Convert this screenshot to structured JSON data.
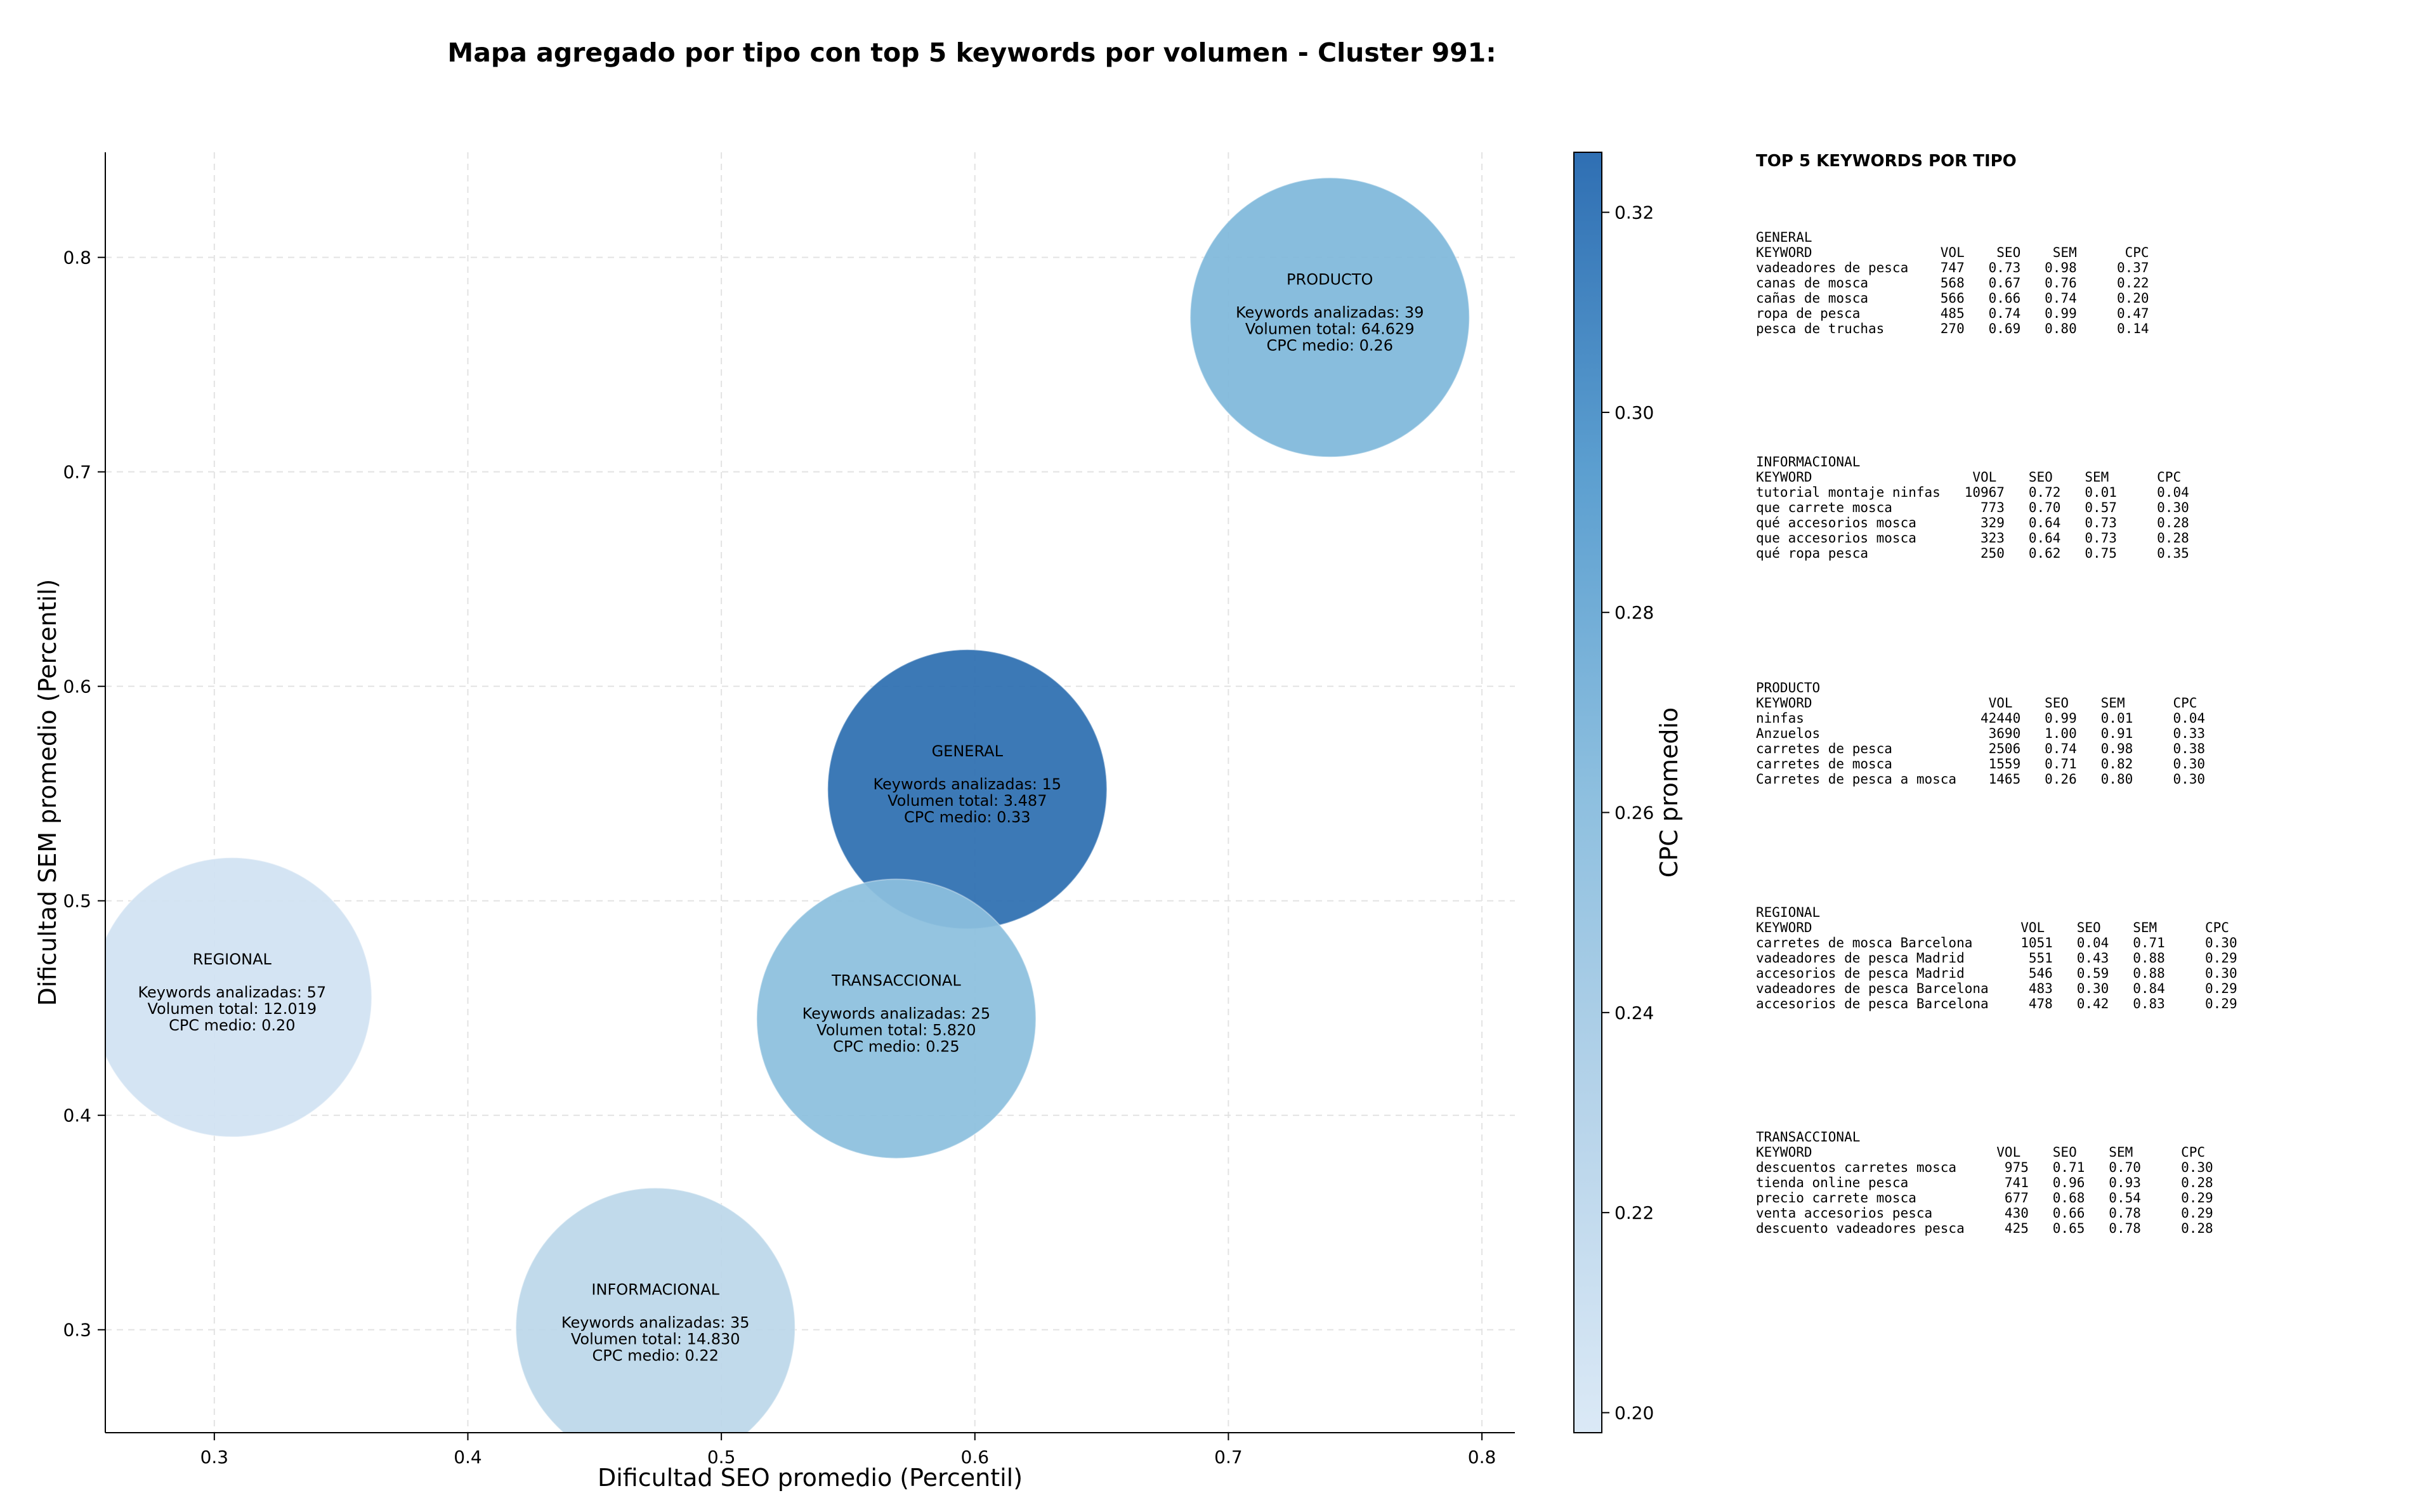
{
  "chart_data": {
    "type": "scatter",
    "title": "Mapa agregado por tipo con top 5 keywords por volumen - Cluster 991:",
    "xlabel": "Dificultad SEO promedio (Percentil)",
    "ylabel": "Dificultad SEM promedio (Percentil)",
    "colorbar_label": "CPC promedio",
    "xlim": [
      0.257,
      0.813
    ],
    "ylim": [
      0.252,
      0.849
    ],
    "xticks": [
      0.3,
      0.4,
      0.5,
      0.6,
      0.7,
      0.8
    ],
    "yticks": [
      0.3,
      0.4,
      0.5,
      0.6,
      0.7,
      0.8
    ],
    "colorbar_range": [
      0.198,
      0.326
    ],
    "colorbar_ticks": [
      0.2,
      0.22,
      0.24,
      0.26,
      0.28,
      0.3,
      0.32
    ],
    "grid": true,
    "points": [
      {
        "label": "PRODUCTO",
        "x": 0.74,
        "y": 0.772,
        "cpc": 0.26,
        "line1": "Keywords analizadas: 39",
        "line2": "Volumen total: 64.629",
        "line3": "CPC medio: 0.26",
        "color": "#7fb8da"
      },
      {
        "label": "GENERAL",
        "x": 0.597,
        "y": 0.552,
        "cpc": 0.33,
        "line1": "Keywords analizadas: 15",
        "line2": "Volumen total: 3.487",
        "line3": "CPC medio: 0.33",
        "color": "#2d6fb0"
      },
      {
        "label": "REGIONAL",
        "x": 0.307,
        "y": 0.455,
        "cpc": 0.2,
        "line1": "Keywords analizadas: 57",
        "line2": "Volumen total: 12.019",
        "line3": "CPC medio: 0.20",
        "color": "#d1e2f2"
      },
      {
        "label": "TRANSACCIONAL",
        "x": 0.569,
        "y": 0.445,
        "cpc": 0.25,
        "line1": "Keywords analizadas: 25",
        "line2": "Volumen total: 5.820",
        "line3": "CPC medio: 0.25",
        "color": "#8cbfde"
      },
      {
        "label": "INFORMACIONAL",
        "x": 0.474,
        "y": 0.301,
        "cpc": 0.22,
        "line1": "Keywords analizadas: 35",
        "line2": "Volumen total: 14.830",
        "line3": "CPC medio: 0.22",
        "color": "#bcd7ea"
      }
    ],
    "colormap": [
      "#dbe9f6",
      "#c6dbef",
      "#9ecae1",
      "#6baed6",
      "#4292c6",
      "#2f74b5"
    ]
  },
  "panel": {
    "title": "TOP 5 KEYWORDS POR TIPO",
    "blocks": [
      {
        "lines": [
          "GENERAL",
          "KEYWORD                VOL    SEO    SEM      CPC",
          "vadeadores de pesca    747   0.73   0.98     0.37",
          "canas de mosca         568   0.67   0.76     0.22",
          "cañas de mosca         566   0.66   0.74     0.20",
          "ropa de pesca          485   0.74   0.99     0.47",
          "pesca de truchas       270   0.69   0.80     0.14"
        ]
      },
      {
        "lines": [
          "INFORMACIONAL",
          "KEYWORD                    VOL    SEO    SEM      CPC",
          "tutorial montaje ninfas   10967   0.72   0.01     0.04",
          "que carrete mosca           773   0.70   0.57     0.30",
          "qué accesorios mosca        329   0.64   0.73     0.28",
          "que accesorios mosca        323   0.64   0.73     0.28",
          "qué ropa pesca              250   0.62   0.75     0.35"
        ]
      },
      {
        "lines": [
          "PRODUCTO",
          "KEYWORD                      VOL    SEO    SEM      CPC",
          "ninfas                      42440   0.99   0.01     0.04",
          "Anzuelos                     3690   1.00   0.91     0.33",
          "carretes de pesca            2506   0.74   0.98     0.38",
          "carretes de mosca            1559   0.71   0.82     0.30",
          "Carretes de pesca a mosca    1465   0.26   0.80     0.30"
        ]
      },
      {
        "lines": [
          "REGIONAL",
          "KEYWORD                          VOL    SEO    SEM      CPC",
          "carretes de mosca Barcelona      1051   0.04   0.71     0.30",
          "vadeadores de pesca Madrid        551   0.43   0.88     0.29",
          "accesorios de pesca Madrid        546   0.59   0.88     0.30",
          "vadeadores de pesca Barcelona     483   0.30   0.84     0.29",
          "accesorios de pesca Barcelona     478   0.42   0.83     0.29"
        ]
      },
      {
        "lines": [
          "TRANSACCIONAL",
          "KEYWORD                       VOL    SEO    SEM      CPC",
          "descuentos carretes mosca      975   0.71   0.70     0.30",
          "tienda online pesca            741   0.96   0.93     0.28",
          "precio carrete mosca           677   0.68   0.54     0.29",
          "venta accesorios pesca         430   0.66   0.78     0.29",
          "descuento vadeadores pesca     425   0.65   0.78     0.28"
        ]
      }
    ]
  }
}
